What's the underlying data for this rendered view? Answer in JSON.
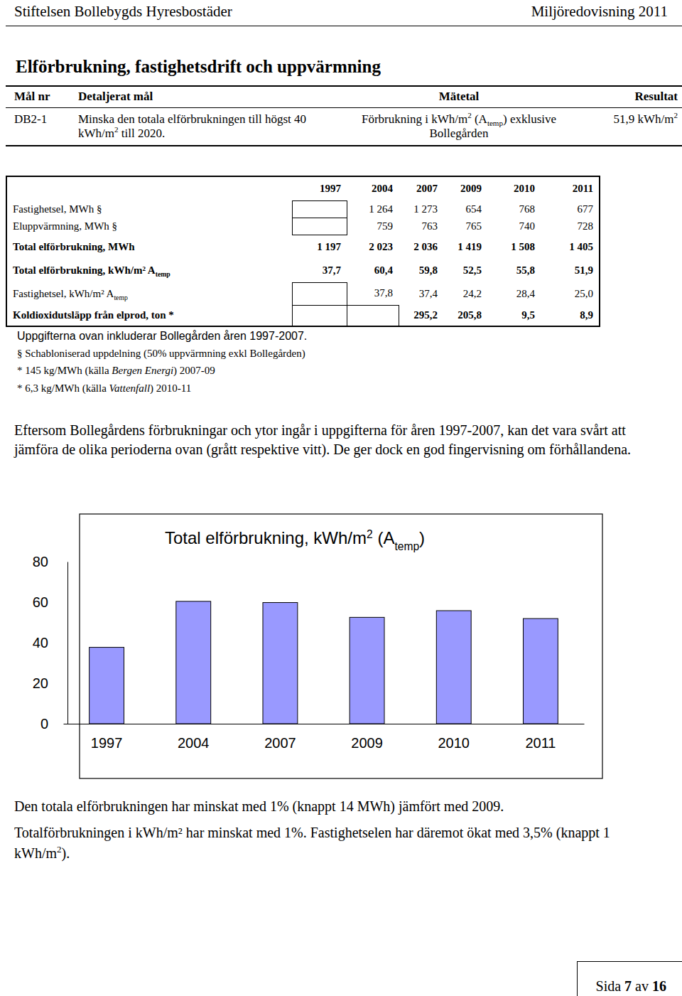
{
  "header": {
    "left": "Stiftelsen Bollebygds Hyresbostäder",
    "right": "Miljöredovisning 2011"
  },
  "title": "Elförbrukning, fastighetsdrift och uppvärmning",
  "goal_table": {
    "columns": [
      "Mål nr",
      "Detaljerat mål",
      "Mätetal",
      "Resultat"
    ],
    "rows": [
      [
        "DB2-1",
        [
          "Minska den totala elförbrukningen till högst 40 kWh/m",
          {
            "sup": "2"
          },
          " till 2020."
        ],
        [
          "Förbrukning i kWh/m",
          {
            "sup": "2"
          },
          " (A",
          {
            "sub": "temp"
          },
          ") exklusive Bollegården"
        ],
        [
          "51,9 kWh/m",
          {
            "sup": "2"
          }
        ]
      ]
    ]
  },
  "data_table": {
    "columns": [
      "1997",
      "2004",
      "2007",
      "2009",
      "2010",
      "2011"
    ],
    "rows": [
      {
        "label": "Fastighetsel, MWh §",
        "cells": [
          null,
          "1 264",
          "1 273",
          "654",
          "768",
          "677"
        ]
      },
      {
        "label": "Eluppvärmning, MWh §",
        "cells": [
          null,
          "759",
          "763",
          "765",
          "740",
          "728"
        ]
      },
      {
        "label": "Total elförbrukning, MWh",
        "cells": [
          "1 197",
          "2 023",
          "2 036",
          "1 419",
          "1 508",
          "1 405"
        ]
      },
      {
        "label": [
          "Total elförbrukning, kWh/m² A",
          {
            "sub": "temp"
          }
        ],
        "cells": [
          "37,7",
          "60,4",
          "59,8",
          "52,5",
          "55,8",
          "51,9"
        ]
      },
      {
        "label": [
          "Fastighetsel, kWh/m² A",
          {
            "sub": "temp"
          }
        ],
        "cells": [
          null,
          "37,8",
          "37,4",
          "24,2",
          "28,4",
          "25,0"
        ]
      },
      {
        "label": "Koldioxidutsläpp från elprod, ton *",
        "cells": [
          null,
          null,
          "295,2",
          "205,8",
          "9,5",
          "8,9"
        ]
      }
    ]
  },
  "notes": [
    "Uppgifterna ovan inkluderar Bollegården åren 1997-2007.",
    "§ Schabloniserad uppdelning (50% uppvärmning exkl Bollegården)",
    [
      "* 145 kg/MWh (källa ",
      {
        "i": "Bergen Energi"
      },
      ") 2007-09"
    ],
    [
      "* 6,3 kg/MWh (källa ",
      {
        "i": "Vattenfall"
      },
      ") 2010-11"
    ]
  ],
  "intro": "Eftersom Bollegårdens förbrukningar och ytor ingår i uppgifterna för åren 1997-2007, kan det vara svårt att jämföra de olika perioderna ovan (grått respektive vitt). De ger dock en god fingervisning om förhållandena.",
  "chart_data": {
    "type": "bar",
    "title": [
      "Total elförbrukning, kWh/m",
      {
        "sup": "2"
      },
      " (A",
      {
        "sub": "temp"
      },
      ")"
    ],
    "categories": [
      "1997",
      "2004",
      "2007",
      "2009",
      "2010",
      "2011"
    ],
    "values": [
      37.7,
      60.4,
      59.8,
      52.5,
      55.8,
      51.9
    ],
    "color": "#9999ff",
    "ylim": [
      0,
      80
    ],
    "yticks": [
      0,
      20,
      40,
      60,
      80
    ]
  },
  "conclusions": [
    "Den totala elförbrukningen har minskat med 1% (knappt 14 MWh) jämfört med 2009.",
    [
      "Totalförbrukningen i kWh/m² har minskat med 1%. Fastighetselen har däremot ökat med 3,5% (knappt 1 kWh/m",
      {
        "sup": "2"
      },
      ")."
    ]
  ],
  "footer": [
    "Sida ",
    {
      "b": "7"
    },
    " av ",
    {
      "b": "16"
    }
  ]
}
